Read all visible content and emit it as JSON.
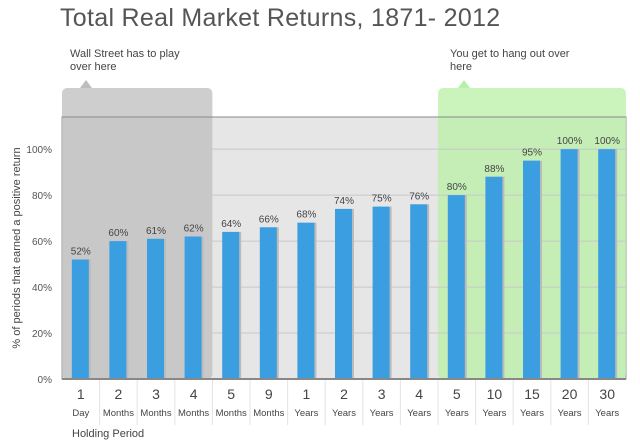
{
  "chart_data": {
    "type": "bar",
    "title": "Total Real Market Returns, 1871- 2012",
    "ylabel": "% of periods that earned a positive return",
    "xlabel": "Holding Period",
    "ylim": [
      0,
      114
    ],
    "yticks": [
      "0%",
      "20%",
      "40%",
      "60%",
      "80%",
      "100%"
    ],
    "ytick_values": [
      0,
      20,
      40,
      60,
      80,
      100
    ],
    "categories": [
      [
        "1",
        "Day"
      ],
      [
        "2",
        "Months"
      ],
      [
        "3",
        "Months"
      ],
      [
        "4",
        "Months"
      ],
      [
        "5",
        "Months"
      ],
      [
        "9",
        "Months"
      ],
      [
        "1",
        "Years"
      ],
      [
        "2",
        "Years"
      ],
      [
        "3",
        "Years"
      ],
      [
        "4",
        "Years"
      ],
      [
        "5",
        "Years"
      ],
      [
        "10",
        "Years"
      ],
      [
        "15",
        "Years"
      ],
      [
        "20",
        "Years"
      ],
      [
        "30",
        "Years"
      ]
    ],
    "values": [
      52,
      60,
      61,
      62,
      64,
      66,
      68,
      74,
      75,
      76,
      80,
      88,
      95,
      100,
      100
    ],
    "labels": [
      "52%",
      "60%",
      "61%",
      "62%",
      "64%",
      "66%",
      "68%",
      "74%",
      "75%",
      "76%",
      "80%",
      "88%",
      "95%",
      "100%",
      "100%"
    ],
    "grid": true,
    "annotations": [
      {
        "text": "Wall Street has to play over here",
        "range": [
          0,
          3
        ]
      },
      {
        "text": "You get to hang out over here",
        "range": [
          10,
          14
        ]
      }
    ],
    "colors": {
      "bar": "#3a9ee0",
      "wall_street": "#bdbdbd",
      "green": "#b8f0a6",
      "plot_bg": "#e6e6e6"
    }
  }
}
